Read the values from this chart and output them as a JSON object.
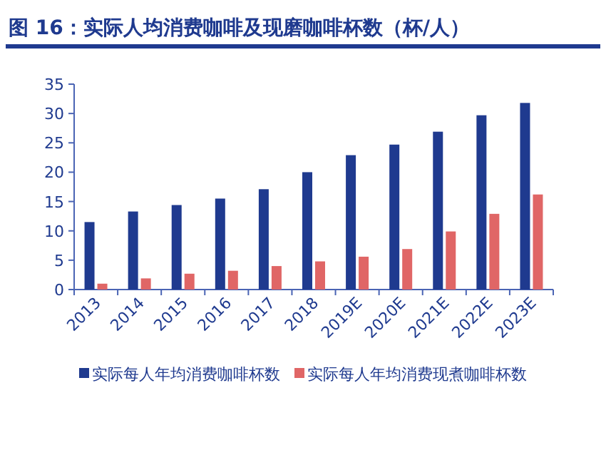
{
  "chart_data": {
    "type": "bar",
    "title": "图 16：实际人均消费咖啡及现磨咖啡杯数（杯/人）",
    "categories": [
      "2013",
      "2014",
      "2015",
      "2016",
      "2017",
      "2018",
      "2019E",
      "2020E",
      "2021E",
      "2022E",
      "2023E"
    ],
    "series": [
      {
        "name": "实际每人年均消费咖啡杯数",
        "color": "#1f3a8f",
        "values": [
          11.5,
          13.3,
          14.4,
          15.5,
          17.1,
          20.0,
          22.9,
          24.7,
          26.9,
          29.7,
          31.8
        ]
      },
      {
        "name": "实际每人年均消费现煮咖啡杯数",
        "color": "#e06666",
        "values": [
          1.0,
          1.9,
          2.7,
          3.2,
          4.0,
          4.8,
          5.6,
          6.9,
          9.9,
          12.9,
          16.2
        ]
      }
    ],
    "ylim": [
      0,
      35
    ],
    "yticks": [
      0,
      5,
      10,
      15,
      20,
      25,
      30,
      35
    ],
    "legend": "bottom"
  }
}
